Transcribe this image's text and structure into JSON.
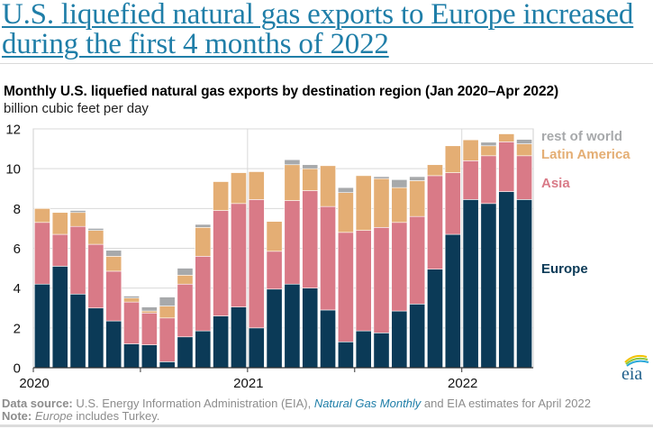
{
  "headline": "U.S. liquefied natural gas exports to Europe increased during the first 4 months of 2022",
  "footer": {
    "source_label": "Data source:",
    "source_text_1": " U.S. Energy Information Administration (EIA), ",
    "source_link": "Natural Gas Monthly",
    "source_text_2": " and EIA estimates for April 2022",
    "note_label": "Note:",
    "note_italic": "Europe",
    "note_text": " includes Turkey."
  },
  "logo": {
    "text": "eia",
    "icon": "eia-logo-icon"
  },
  "colors": {
    "europe": "#0b3a57",
    "asia": "#d97a87",
    "latin_america": "#e4ae74",
    "rest_of_world": "#a7a9ab",
    "headline": "#1f7ea8"
  },
  "chart_data": {
    "type": "bar",
    "stacked": true,
    "title": "Monthly U.S. liquefied natural gas exports by destination region (Jan 2020–Apr 2022)",
    "ylabel": "billion cubic feet per day",
    "xlabel": "",
    "ylim": [
      0,
      12
    ],
    "yticks": [
      0,
      2,
      4,
      6,
      8,
      10,
      12
    ],
    "xtick_labels": [
      {
        "label": "2020",
        "month_index": 0
      },
      {
        "label": "2021",
        "month_index": 12
      },
      {
        "label": "2022",
        "month_index": 24
      }
    ],
    "grid": true,
    "legend_position": "right",
    "categories": [
      "Jan 2020",
      "Feb 2020",
      "Mar 2020",
      "Apr 2020",
      "May 2020",
      "Jun 2020",
      "Jul 2020",
      "Aug 2020",
      "Sep 2020",
      "Oct 2020",
      "Nov 2020",
      "Dec 2020",
      "Jan 2021",
      "Feb 2021",
      "Mar 2021",
      "Apr 2021",
      "May 2021",
      "Jun 2021",
      "Jul 2021",
      "Aug 2021",
      "Sep 2021",
      "Oct 2021",
      "Nov 2021",
      "Dec 2021",
      "Jan 2022",
      "Feb 2022",
      "Mar 2022",
      "Apr 2022"
    ],
    "series": [
      {
        "name": "Europe",
        "key": "europe",
        "values": [
          4.2,
          5.1,
          3.7,
          3.0,
          2.35,
          1.2,
          1.15,
          0.3,
          1.55,
          1.85,
          2.6,
          3.05,
          2.0,
          3.95,
          4.2,
          4.0,
          2.9,
          1.3,
          1.85,
          1.75,
          2.85,
          3.2,
          4.95,
          6.7,
          8.45,
          8.25,
          8.85,
          8.45
        ]
      },
      {
        "name": "Asia",
        "key": "asia",
        "values": [
          3.1,
          1.6,
          3.4,
          3.2,
          2.5,
          2.1,
          1.6,
          2.2,
          2.65,
          3.75,
          5.3,
          5.2,
          6.45,
          1.9,
          4.2,
          4.9,
          5.2,
          5.5,
          5.05,
          5.3,
          4.45,
          4.4,
          4.7,
          3.1,
          1.95,
          2.4,
          2.5,
          2.2
        ]
      },
      {
        "name": "Latin America",
        "key": "latin_america",
        "values": [
          0.7,
          1.1,
          0.7,
          0.7,
          0.75,
          0.2,
          0.1,
          0.6,
          0.45,
          1.45,
          1.45,
          1.55,
          1.4,
          1.5,
          1.8,
          1.1,
          2.05,
          2.0,
          2.75,
          2.45,
          1.75,
          1.8,
          0.55,
          1.35,
          1.05,
          0.5,
          0.4,
          0.6
        ]
      },
      {
        "name": "rest of world",
        "key": "rest_of_world",
        "values": [
          0,
          0,
          0.1,
          0.1,
          0.3,
          0.1,
          0.2,
          0.45,
          0.35,
          0.15,
          0,
          0,
          0,
          0,
          0.25,
          0.2,
          0,
          0.25,
          0,
          0.1,
          0.4,
          0.2,
          0,
          0,
          0,
          0.18,
          0,
          0.22
        ]
      }
    ],
    "legend": [
      {
        "label": "rest of world",
        "key": "rest_of_world"
      },
      {
        "label": "Latin America",
        "key": "latin_america"
      },
      {
        "label": "Asia",
        "key": "asia"
      },
      {
        "label": "Europe",
        "key": "europe"
      }
    ]
  }
}
